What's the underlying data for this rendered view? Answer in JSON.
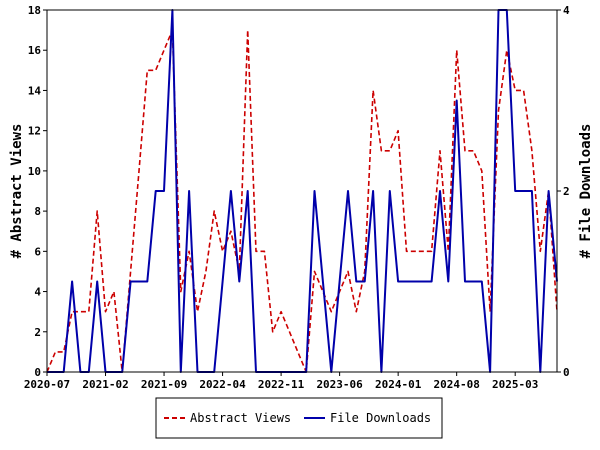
{
  "chart_data": {
    "type": "line",
    "xlabel": "",
    "ylabel_left": "# Abstract Views",
    "ylabel_right": "# File Downloads",
    "x_tick_labels": [
      "2020-07",
      "2021-02",
      "2021-09",
      "2022-04",
      "2022-11",
      "2023-06",
      "2024-01",
      "2024-08",
      "2025-03"
    ],
    "ylim_left": [
      0,
      18
    ],
    "yticks_left": [
      0,
      2,
      4,
      6,
      8,
      10,
      12,
      14,
      16,
      18
    ],
    "ylim_right": [
      0,
      4
    ],
    "yticks_right": [
      0,
      2,
      4
    ],
    "legend_position": "bottom",
    "series": [
      {
        "name": "Abstract Views",
        "axis": "left",
        "color": "#cc0000",
        "style": "dashed",
        "values": [
          0,
          1,
          1,
          3,
          3,
          3,
          8,
          3,
          4,
          0,
          5,
          10,
          15,
          15,
          16,
          17,
          4,
          6,
          3,
          5,
          8,
          6,
          7,
          5,
          17,
          6,
          6,
          2,
          3,
          2,
          1,
          0,
          5,
          4,
          3,
          4,
          5,
          3,
          5,
          14,
          11,
          11,
          12,
          6,
          6,
          6,
          6,
          11,
          6,
          16,
          11,
          11,
          10,
          3,
          13,
          16,
          14,
          14,
          11,
          6,
          9,
          3
        ]
      },
      {
        "name": "File Downloads",
        "axis": "right",
        "color": "#0000aa",
        "style": "solid",
        "values": [
          0,
          0,
          0,
          1,
          0,
          0,
          1,
          0,
          0,
          0,
          1,
          1,
          1,
          2,
          2,
          4,
          0,
          2,
          0,
          0,
          0,
          1,
          2,
          1,
          2,
          0,
          0,
          0,
          0,
          0,
          0,
          0,
          2,
          1,
          0,
          1,
          2,
          1,
          1,
          2,
          0,
          2,
          1,
          1,
          1,
          1,
          1,
          2,
          1,
          3,
          1,
          1,
          1,
          0,
          4,
          4,
          2,
          2,
          2,
          0,
          2,
          1
        ]
      }
    ]
  }
}
